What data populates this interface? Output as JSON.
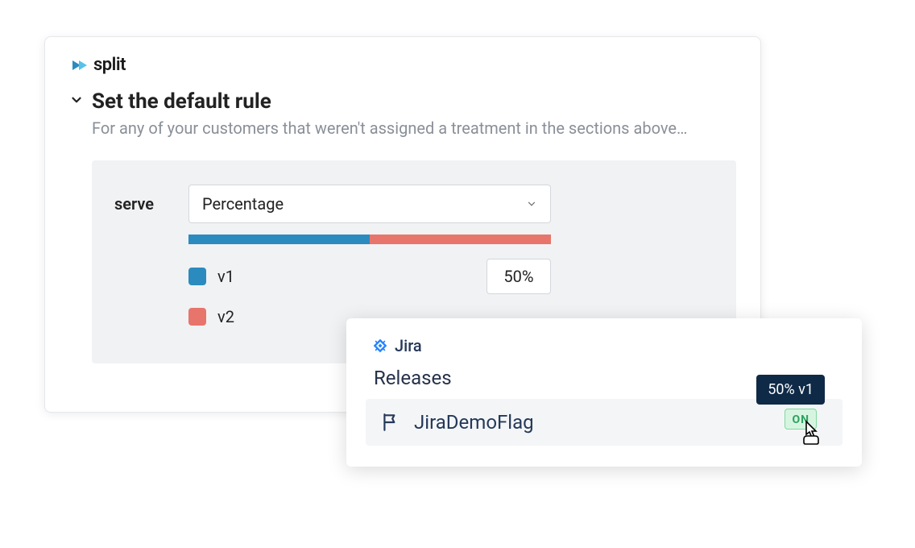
{
  "split": {
    "brand": "split",
    "logo_colors": {
      "primary": "#2b8bbf",
      "accent": "#0a5d8a"
    },
    "section_title": "Set the default rule",
    "section_desc": "For any of your customers that weren't assigned a treatment in the sections above…",
    "serve_label": "serve",
    "select_value": "Percentage",
    "bar": {
      "segments": [
        {
          "color": "#2b8bbf",
          "pct": 50
        },
        {
          "color": "#e8756b",
          "pct": 50
        }
      ]
    },
    "treatments": [
      {
        "name": "v1",
        "color": "#2b8bbf",
        "pct": "50%"
      },
      {
        "name": "v2",
        "color": "#e8756b",
        "pct": ""
      }
    ],
    "box_bg": "#f0f2f4"
  },
  "jira": {
    "brand": "Jira",
    "logo_color": "#2684ff",
    "section_title": "Releases",
    "flag_name": "JiraDemoFlag",
    "tooltip": "50% v1",
    "status": "ON",
    "status_bg": "#d6f5e0",
    "status_border": "#7fd9a0",
    "status_color": "#2da160",
    "row_bg": "#f4f5f7",
    "tooltip_bg": "#0e2a47"
  }
}
